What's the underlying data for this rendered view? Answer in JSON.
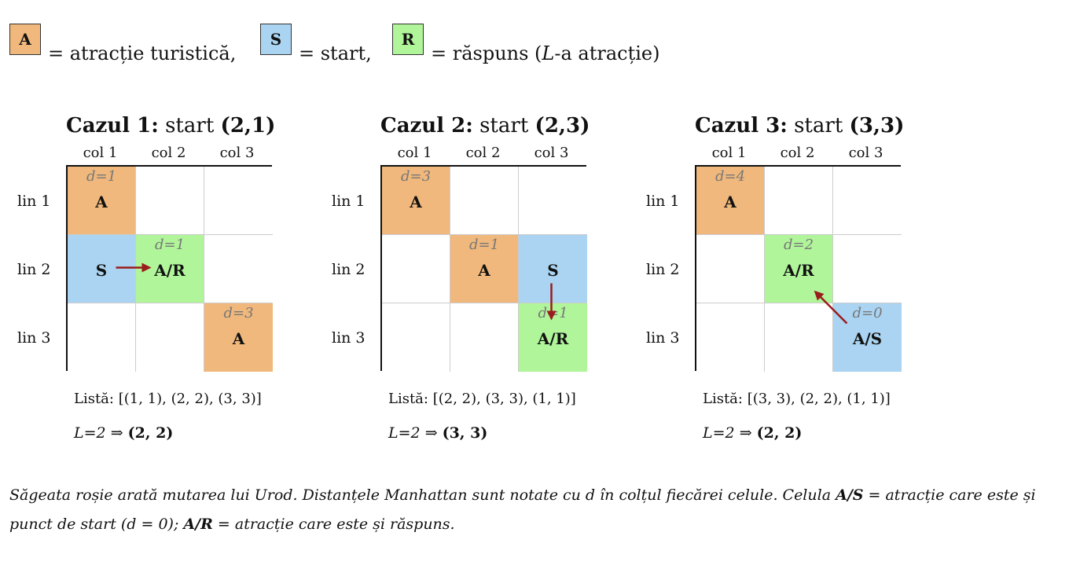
{
  "colors": {
    "attraction": "#f0b87c",
    "start": "#aad4f1",
    "answer": "#b0f59a",
    "arrow": "#9b1c1c"
  },
  "legend": [
    {
      "box": "A",
      "text": "= atracție turistică,",
      "type": "attraction"
    },
    {
      "box": "S",
      "text": "= start,",
      "type": "start"
    },
    {
      "box": "R",
      "text": "= răspuns (",
      "text_var": "L",
      "text_end": "-a atracție)",
      "type": "answer"
    }
  ],
  "cases": [
    {
      "title_bold": "Cazul 1:",
      "title_mid": "start",
      "title_coord": "(2,1)",
      "col_headers": [
        "col 1",
        "col 2",
        "col 3"
      ],
      "row_headers": [
        "lin 1",
        "lin 2",
        "lin 3"
      ],
      "cells": [
        [
          {
            "type": "attraction",
            "label": "A",
            "dist": "d=1"
          },
          {
            "type": "empty",
            "label": "",
            "dist": ""
          },
          {
            "type": "empty",
            "label": "",
            "dist": ""
          }
        ],
        [
          {
            "type": "start",
            "label": "S",
            "dist": ""
          },
          {
            "type": "answer",
            "label": "A/R",
            "dist": "d=1"
          },
          {
            "type": "empty",
            "label": "",
            "dist": ""
          }
        ],
        [
          {
            "type": "empty",
            "label": "",
            "dist": ""
          },
          {
            "type": "empty",
            "label": "",
            "dist": ""
          },
          {
            "type": "attraction",
            "label": "A",
            "dist": "d=3"
          }
        ]
      ],
      "arrow": {
        "from": [
          2,
          1
        ],
        "to": [
          2,
          2
        ]
      },
      "lista_label": "Listă:",
      "lista_value": "[(1, 1),  (2, 2),  (3, 3)]",
      "result_lhs": "L=2",
      "result_arrow": "⇒",
      "result_value": "(2, 2)"
    },
    {
      "title_bold": "Cazul 2:",
      "title_mid": "start",
      "title_coord": "(2,3)",
      "col_headers": [
        "col 1",
        "col 2",
        "col 3"
      ],
      "row_headers": [
        "lin 1",
        "lin 2",
        "lin 3"
      ],
      "cells": [
        [
          {
            "type": "attraction",
            "label": "A",
            "dist": "d=3"
          },
          {
            "type": "empty",
            "label": "",
            "dist": ""
          },
          {
            "type": "empty",
            "label": "",
            "dist": ""
          }
        ],
        [
          {
            "type": "empty",
            "label": "",
            "dist": ""
          },
          {
            "type": "attraction",
            "label": "A",
            "dist": "d=1"
          },
          {
            "type": "start",
            "label": "S",
            "dist": ""
          }
        ],
        [
          {
            "type": "empty",
            "label": "",
            "dist": ""
          },
          {
            "type": "empty",
            "label": "",
            "dist": ""
          },
          {
            "type": "answer",
            "label": "A/R",
            "dist": "d=1"
          }
        ]
      ],
      "arrow": {
        "from": [
          2,
          3
        ],
        "to": [
          3,
          3
        ]
      },
      "lista_label": "Listă:",
      "lista_value": "[(2, 2),  (3, 3),  (1, 1)]",
      "result_lhs": "L=2",
      "result_arrow": "⇒",
      "result_value": "(3, 3)"
    },
    {
      "title_bold": "Cazul 3:",
      "title_mid": "start",
      "title_coord": "(3,3)",
      "col_headers": [
        "col 1",
        "col 2",
        "col 3"
      ],
      "row_headers": [
        "lin 1",
        "lin 2",
        "lin 3"
      ],
      "cells": [
        [
          {
            "type": "attraction",
            "label": "A",
            "dist": "d=4"
          },
          {
            "type": "empty",
            "label": "",
            "dist": ""
          },
          {
            "type": "empty",
            "label": "",
            "dist": ""
          }
        ],
        [
          {
            "type": "empty",
            "label": "",
            "dist": ""
          },
          {
            "type": "answer",
            "label": "A/R",
            "dist": "d=2"
          },
          {
            "type": "empty",
            "label": "",
            "dist": ""
          }
        ],
        [
          {
            "type": "empty",
            "label": "",
            "dist": ""
          },
          {
            "type": "empty",
            "label": "",
            "dist": ""
          },
          {
            "type": "start",
            "label": "A/S",
            "dist": "d=0"
          }
        ]
      ],
      "arrow": {
        "from": [
          3,
          3
        ],
        "to": [
          2,
          2
        ]
      },
      "lista_label": "Listă:",
      "lista_value": "[(3, 3),  (2, 2),  (1, 1)]",
      "result_lhs": "L=2",
      "result_arrow": "⇒",
      "result_value": "(2, 2)"
    }
  ],
  "caption": {
    "part1": "Săgeata roșie arată mutarea lui Urod. Distanțele Manhattan sunt notate cu d în colțul fiecărei celule. Celula ",
    "bold1": "A/S",
    "part2": " = atracție care este și punct de start (d = 0); ",
    "bold2": "A/R",
    "part3": " = atracție care este și răspuns."
  }
}
